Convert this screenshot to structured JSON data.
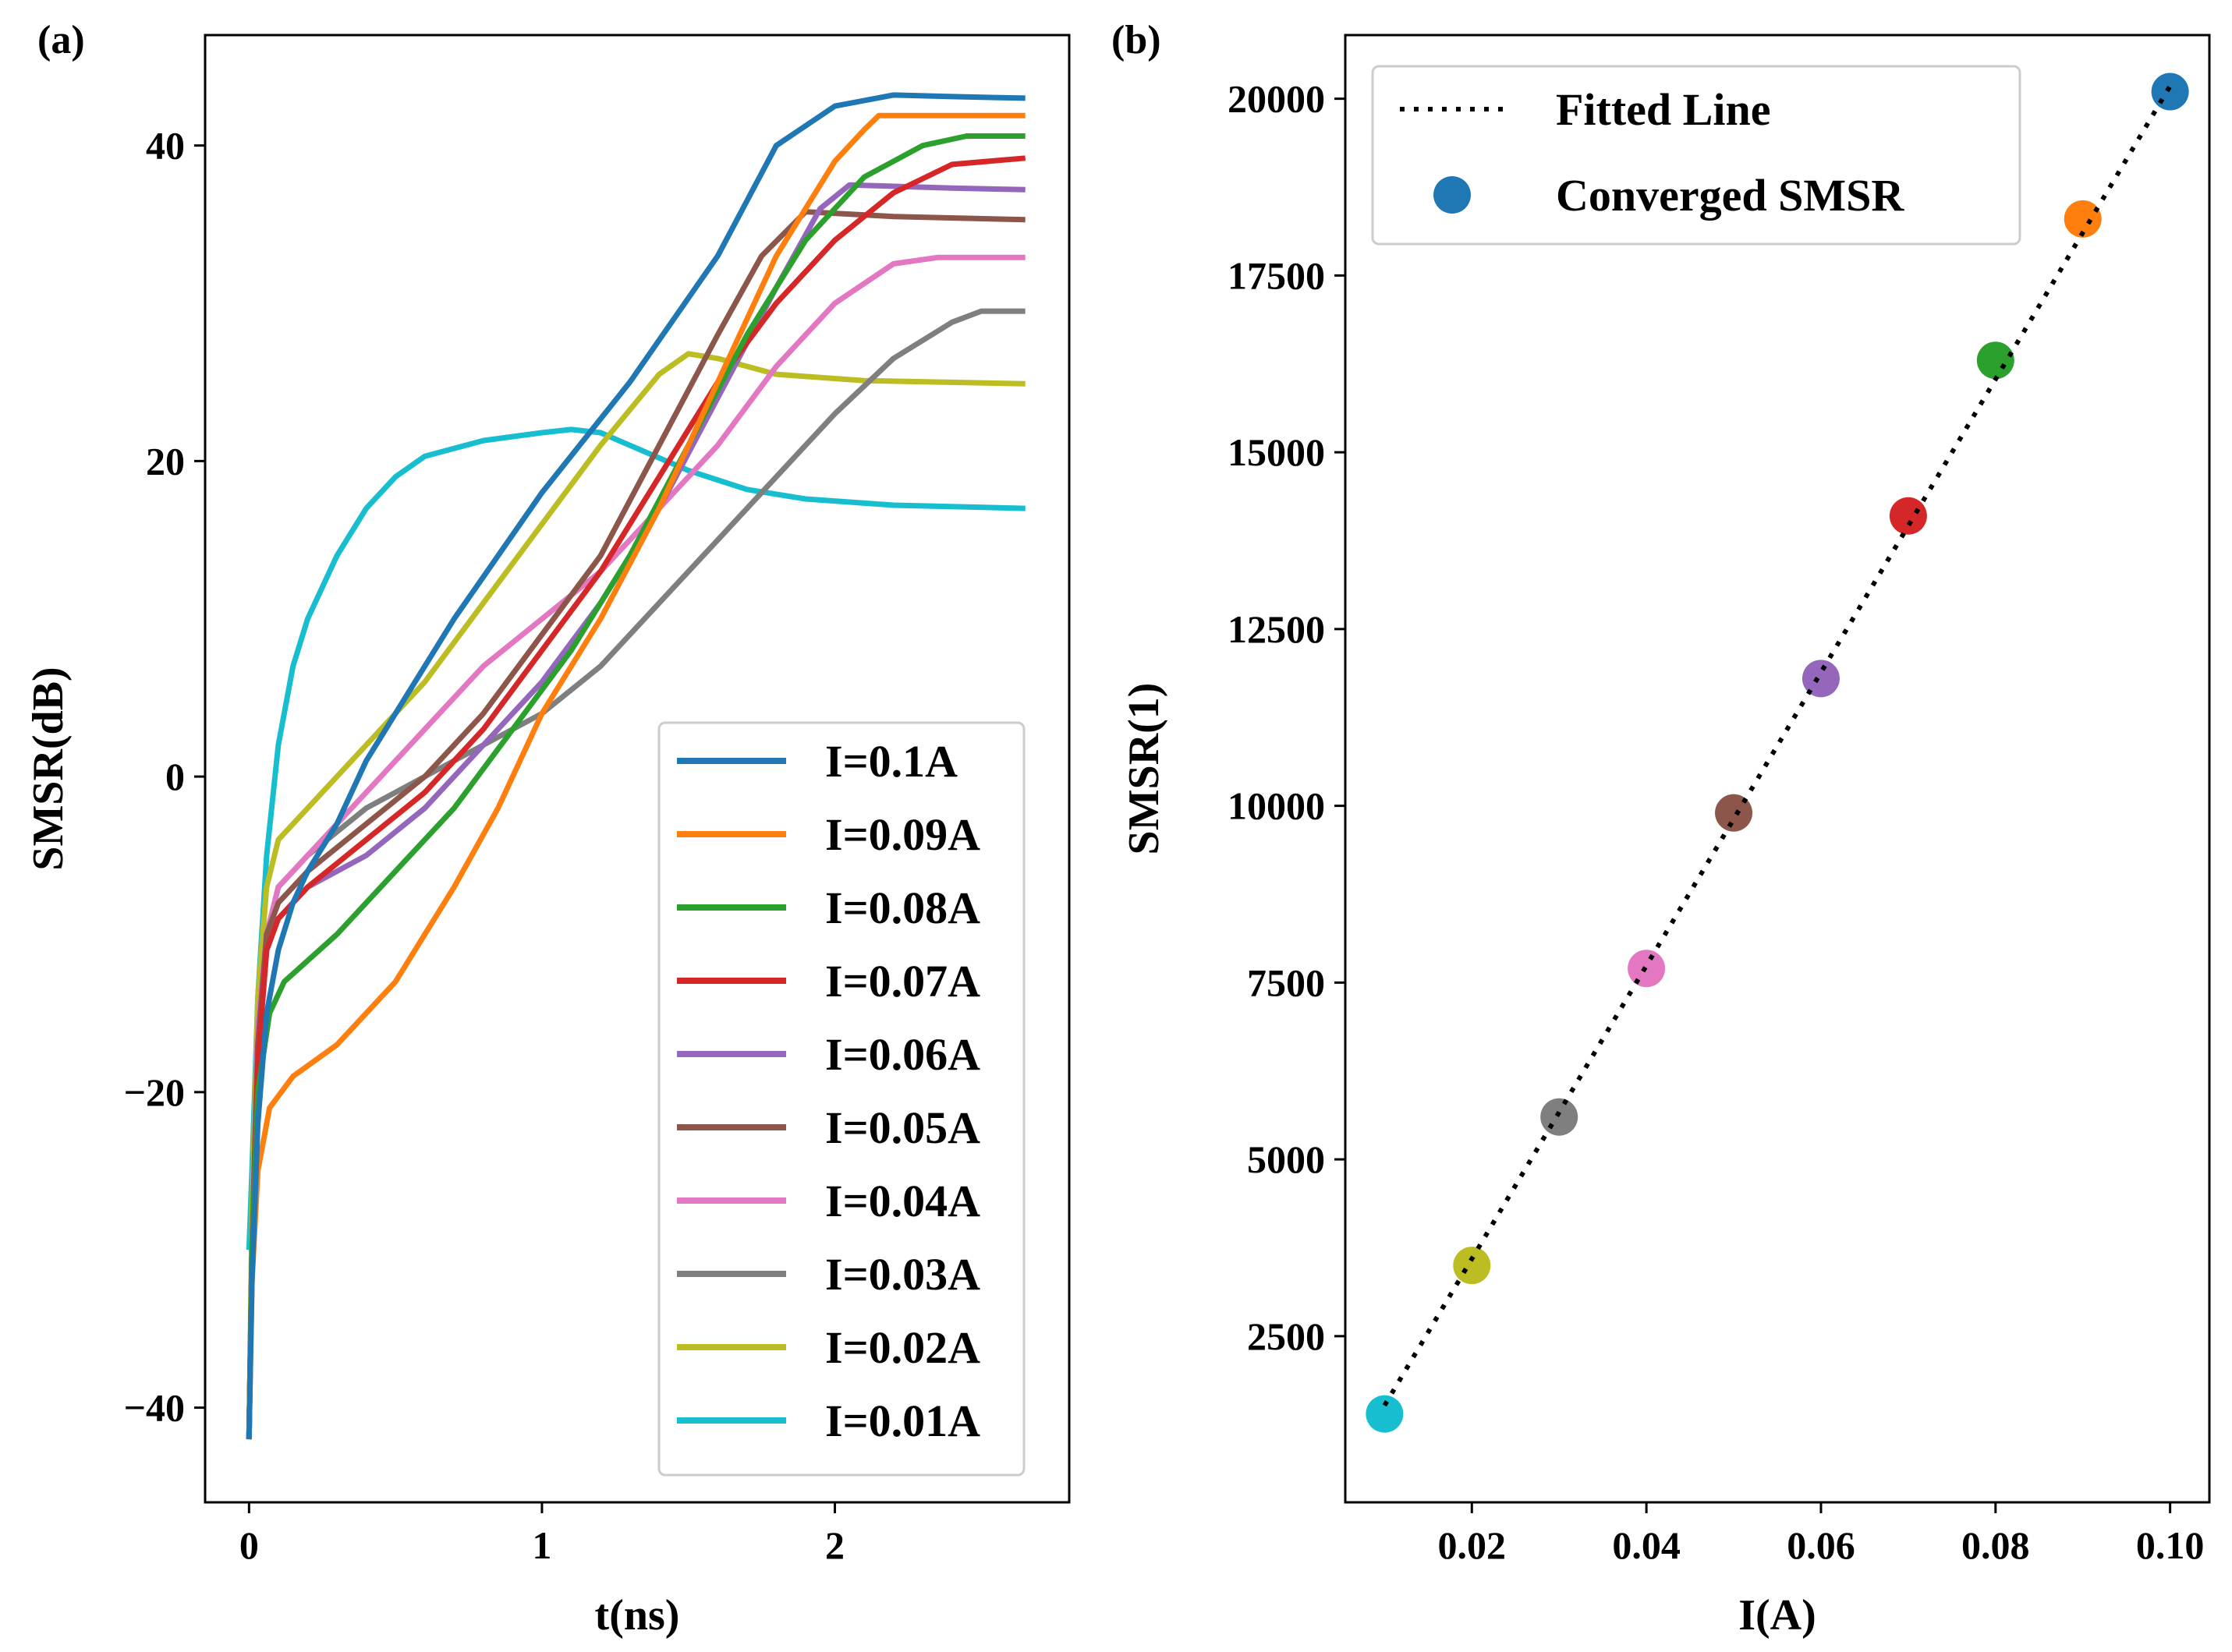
{
  "chart_data": [
    {
      "type": "line",
      "panel_label": "(a)",
      "xlabel": "t(ns)",
      "ylabel": "SMSR(dB)",
      "xlim": [
        -0.15,
        2.8
      ],
      "ylim": [
        -46,
        47
      ],
      "xticks": [
        0,
        1,
        2
      ],
      "yticks": [
        -40,
        -20,
        0,
        20,
        40
      ],
      "ytick_labels": [
        "−40",
        "−20",
        "0",
        "20",
        "40"
      ],
      "legend_position": "lower right",
      "series": [
        {
          "name": "I=0.1A",
          "color": "#1f77b4",
          "points": [
            [
              0,
              -42
            ],
            [
              0.01,
              -32
            ],
            [
              0.03,
              -22
            ],
            [
              0.06,
              -15
            ],
            [
              0.1,
              -11
            ],
            [
              0.15,
              -8
            ],
            [
              0.2,
              -6
            ],
            [
              0.3,
              -3
            ],
            [
              0.4,
              1
            ],
            [
              0.5,
              4
            ],
            [
              0.7,
              10
            ],
            [
              1.0,
              18
            ],
            [
              1.3,
              25
            ],
            [
              1.6,
              33
            ],
            [
              1.8,
              40
            ],
            [
              2.0,
              42.5
            ],
            [
              2.2,
              43.2
            ],
            [
              2.4,
              43.1
            ],
            [
              2.65,
              43
            ]
          ]
        },
        {
          "name": "I=0.09A",
          "color": "#ff7f0e",
          "points": [
            [
              0,
              -42
            ],
            [
              0.01,
              -32
            ],
            [
              0.03,
              -25
            ],
            [
              0.07,
              -21
            ],
            [
              0.15,
              -19
            ],
            [
              0.3,
              -17
            ],
            [
              0.5,
              -13
            ],
            [
              0.7,
              -7
            ],
            [
              0.85,
              -2
            ],
            [
              1.0,
              4
            ],
            [
              1.2,
              10
            ],
            [
              1.4,
              17
            ],
            [
              1.6,
              25
            ],
            [
              1.8,
              33
            ],
            [
              2.0,
              39
            ],
            [
              2.1,
              41
            ],
            [
              2.15,
              41.9
            ],
            [
              2.4,
              41.9
            ],
            [
              2.65,
              41.9
            ]
          ]
        },
        {
          "name": "I=0.08A",
          "color": "#2ca02c",
          "points": [
            [
              0,
              -42
            ],
            [
              0.01,
              -30
            ],
            [
              0.03,
              -20
            ],
            [
              0.07,
              -15
            ],
            [
              0.12,
              -13
            ],
            [
              0.3,
              -10
            ],
            [
              0.5,
              -6
            ],
            [
              0.7,
              -2
            ],
            [
              0.9,
              3
            ],
            [
              1.1,
              8
            ],
            [
              1.3,
              14
            ],
            [
              1.5,
              21
            ],
            [
              1.7,
              28
            ],
            [
              1.9,
              34
            ],
            [
              2.1,
              38
            ],
            [
              2.3,
              40
            ],
            [
              2.45,
              40.6
            ],
            [
              2.65,
              40.6
            ]
          ]
        },
        {
          "name": "I=0.07A",
          "color": "#d62728",
          "points": [
            [
              0,
              -42
            ],
            [
              0.01,
              -30
            ],
            [
              0.03,
              -18
            ],
            [
              0.06,
              -11
            ],
            [
              0.1,
              -9
            ],
            [
              0.2,
              -7
            ],
            [
              0.4,
              -4
            ],
            [
              0.6,
              -1
            ],
            [
              0.8,
              3
            ],
            [
              1.0,
              8
            ],
            [
              1.2,
              13
            ],
            [
              1.4,
              19
            ],
            [
              1.6,
              25
            ],
            [
              1.8,
              30
            ],
            [
              2.0,
              34
            ],
            [
              2.2,
              37
            ],
            [
              2.4,
              38.8
            ],
            [
              2.65,
              39.2
            ]
          ]
        },
        {
          "name": "I=0.06A",
          "color": "#9467bd",
          "points": [
            [
              0,
              -42
            ],
            [
              0.01,
              -30
            ],
            [
              0.03,
              -18
            ],
            [
              0.06,
              -11
            ],
            [
              0.1,
              -9
            ],
            [
              0.2,
              -7
            ],
            [
              0.4,
              -5
            ],
            [
              0.6,
              -2
            ],
            [
              0.8,
              2
            ],
            [
              1.0,
              6
            ],
            [
              1.2,
              11
            ],
            [
              1.4,
              17
            ],
            [
              1.6,
              24
            ],
            [
              1.8,
              31
            ],
            [
              1.95,
              36
            ],
            [
              2.05,
              37.5
            ],
            [
              2.4,
              37.3
            ],
            [
              2.65,
              37.2
            ]
          ]
        },
        {
          "name": "I=0.05A",
          "color": "#8c564b",
          "points": [
            [
              0,
              -42
            ],
            [
              0.01,
              -30
            ],
            [
              0.03,
              -17
            ],
            [
              0.06,
              -10
            ],
            [
              0.1,
              -8
            ],
            [
              0.2,
              -6
            ],
            [
              0.4,
              -3
            ],
            [
              0.6,
              0
            ],
            [
              0.8,
              4
            ],
            [
              1.0,
              9
            ],
            [
              1.2,
              14
            ],
            [
              1.4,
              21
            ],
            [
              1.6,
              28
            ],
            [
              1.75,
              33
            ],
            [
              1.9,
              35.8
            ],
            [
              2.2,
              35.5
            ],
            [
              2.65,
              35.3
            ]
          ]
        },
        {
          "name": "I=0.04A",
          "color": "#e377c2",
          "points": [
            [
              0,
              -42
            ],
            [
              0.01,
              -30
            ],
            [
              0.03,
              -16
            ],
            [
              0.06,
              -10
            ],
            [
              0.1,
              -7
            ],
            [
              0.2,
              -5
            ],
            [
              0.4,
              -1
            ],
            [
              0.6,
              3
            ],
            [
              0.8,
              7
            ],
            [
              1.0,
              10
            ],
            [
              1.2,
              13
            ],
            [
              1.4,
              17
            ],
            [
              1.6,
              21
            ],
            [
              1.8,
              26
            ],
            [
              2.0,
              30
            ],
            [
              2.2,
              32.5
            ],
            [
              2.35,
              32.9
            ],
            [
              2.65,
              32.9
            ]
          ]
        },
        {
          "name": "I=0.03A",
          "color": "#7f7f7f",
          "points": [
            [
              0,
              -42
            ],
            [
              0.01,
              -30
            ],
            [
              0.03,
              -16
            ],
            [
              0.06,
              -10
            ],
            [
              0.1,
              -7
            ],
            [
              0.2,
              -5
            ],
            [
              0.4,
              -2
            ],
            [
              0.6,
              0
            ],
            [
              0.8,
              2
            ],
            [
              1.0,
              4
            ],
            [
              1.2,
              7
            ],
            [
              1.4,
              11
            ],
            [
              1.6,
              15
            ],
            [
              1.8,
              19
            ],
            [
              2.0,
              23
            ],
            [
              2.2,
              26.5
            ],
            [
              2.4,
              28.8
            ],
            [
              2.5,
              29.5
            ],
            [
              2.65,
              29.5
            ]
          ]
        },
        {
          "name": "I=0.02A",
          "color": "#bcbd22",
          "points": [
            [
              0,
              -42
            ],
            [
              0.01,
              -28
            ],
            [
              0.03,
              -14
            ],
            [
              0.06,
              -7
            ],
            [
              0.1,
              -4
            ],
            [
              0.2,
              -2
            ],
            [
              0.4,
              2
            ],
            [
              0.6,
              6
            ],
            [
              0.8,
              11
            ],
            [
              1.0,
              16
            ],
            [
              1.2,
              21
            ],
            [
              1.4,
              25.5
            ],
            [
              1.5,
              26.8
            ],
            [
              1.6,
              26.5
            ],
            [
              1.8,
              25.5
            ],
            [
              2.1,
              25.1
            ],
            [
              2.65,
              24.9
            ]
          ]
        },
        {
          "name": "I=0.01A",
          "color": "#17becf",
          "points": [
            [
              0,
              -30
            ],
            [
              0.01,
              -25
            ],
            [
              0.03,
              -14
            ],
            [
              0.06,
              -5
            ],
            [
              0.1,
              2
            ],
            [
              0.15,
              7
            ],
            [
              0.2,
              10
            ],
            [
              0.3,
              14
            ],
            [
              0.4,
              17
            ],
            [
              0.5,
              19
            ],
            [
              0.6,
              20.3
            ],
            [
              0.8,
              21.3
            ],
            [
              1.0,
              21.8
            ],
            [
              1.1,
              22
            ],
            [
              1.2,
              21.8
            ],
            [
              1.3,
              21
            ],
            [
              1.5,
              19.4
            ],
            [
              1.7,
              18.2
            ],
            [
              1.9,
              17.6
            ],
            [
              2.2,
              17.2
            ],
            [
              2.65,
              17
            ]
          ]
        }
      ]
    },
    {
      "type": "scatter",
      "panel_label": "(b)",
      "xlabel": "I(A)",
      "ylabel": "SMSR(1)",
      "xlim": [
        0.0055,
        0.1045
      ],
      "ylim": [
        150,
        20900
      ],
      "xticks": [
        0.02,
        0.04,
        0.06,
        0.08,
        0.1
      ],
      "xtick_labels": [
        "0.02",
        "0.04",
        "0.06",
        "0.08",
        "0.10"
      ],
      "yticks": [
        2500,
        5000,
        7500,
        10000,
        12500,
        15000,
        17500,
        20000
      ],
      "legend_position": "upper left",
      "legend": [
        "Fitted Line",
        "Converged SMSR"
      ],
      "fitted_line": {
        "x": [
          0.01,
          0.1
        ],
        "y": [
          1520,
          20180
        ]
      },
      "points": [
        {
          "x": 0.01,
          "y": 1400,
          "color": "#17becf"
        },
        {
          "x": 0.02,
          "y": 3500,
          "color": "#bcbd22"
        },
        {
          "x": 0.03,
          "y": 5600,
          "color": "#7f7f7f"
        },
        {
          "x": 0.04,
          "y": 7700,
          "color": "#e377c2"
        },
        {
          "x": 0.05,
          "y": 9900,
          "color": "#8c564b"
        },
        {
          "x": 0.06,
          "y": 11800,
          "color": "#9467bd"
        },
        {
          "x": 0.07,
          "y": 14100,
          "color": "#d62728"
        },
        {
          "x": 0.08,
          "y": 16300,
          "color": "#2ca02c"
        },
        {
          "x": 0.09,
          "y": 18300,
          "color": "#ff7f0e"
        },
        {
          "x": 0.1,
          "y": 20100,
          "color": "#1f77b4"
        }
      ],
      "legend_marker_color": "#1f77b4"
    }
  ]
}
